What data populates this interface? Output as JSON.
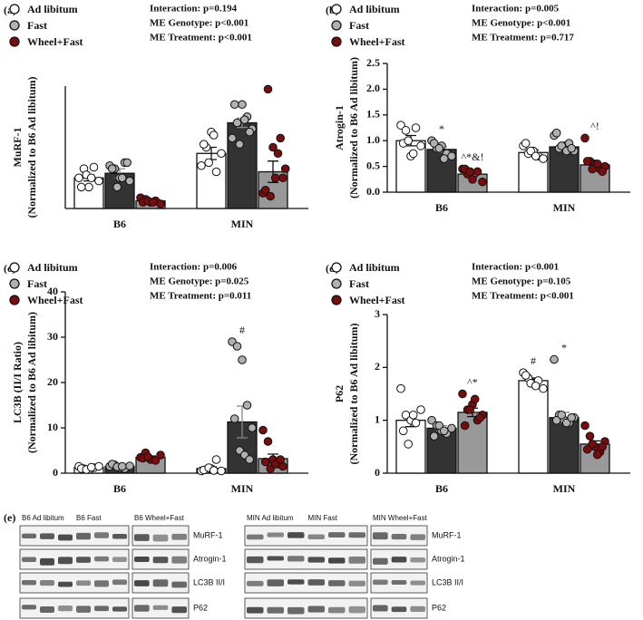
{
  "chart_data": [
    {
      "type": "bar",
      "title": "(a)",
      "ylabel": [
        "MuRF-1",
        "(Normalized to B6 Ad libitum)"
      ],
      "stats": [
        "Interaction: p=0.194",
        "ME Genotype: p<0.001",
        "ME Treatment: p<0.001"
      ],
      "categories": [
        "B6",
        "MIN"
      ],
      "ylim": [
        0,
        4
      ],
      "series": [
        {
          "name": "Ad libitum",
          "color": "#ffffff",
          "point_color": "#ffffff",
          "values": [
            1.0,
            1.8
          ],
          "errors": [
            0.1,
            0.2
          ],
          "points": [
            [
              1.0,
              1.3,
              0.7,
              1.35,
              0.9,
              0.7,
              1.1,
              1.0
            ],
            [
              1.4,
              2.0,
              2.5,
              1.2,
              1.8,
              2.1,
              1.5,
              2.4
            ]
          ]
        },
        {
          "name": "Fast",
          "color": "#333333",
          "point_color": "#b0b0b0",
          "values": [
            1.15,
            2.8
          ],
          "errors": [
            0.15,
            0.15
          ],
          "points": [
            [
              1.4,
              1.3,
              1.0,
              1.5,
              0.9,
              1.3,
              0.7,
              1.0,
              1.5
            ],
            [
              2.3,
              2.8,
              3.4,
              3.0,
              2.6,
              3.4,
              2.1,
              2.9,
              2.5
            ]
          ]
        },
        {
          "name": "Wheel+Fast",
          "color": "#999999",
          "point_color": "#7a0c0c",
          "values": [
            0.25,
            1.2
          ],
          "errors": [
            0.03,
            0.35
          ],
          "points": [
            [
              0.35,
              0.3,
              0.2,
              0.25,
              0.15,
              0.2,
              0.25,
              0.2
            ],
            [
              0.5,
              3.9,
              2.0,
              1.8,
              1.0,
              0.6,
              0.4,
              1.0,
              2.3,
              1.3
            ]
          ]
        }
      ]
    },
    {
      "type": "bar",
      "title": "(b)",
      "ylabel": [
        "Atrogin-1",
        "(Normalized to B6 Ad libitum)"
      ],
      "stats": [
        "Interaction: p=0.005",
        "ME Genotype: p<0.001",
        "ME Treatment: p=0.717"
      ],
      "categories": [
        "B6",
        "MIN"
      ],
      "ylim": [
        0,
        2.5
      ],
      "yticks": [
        {
          "value": 0,
          "label": "0.0"
        },
        0.5,
        {
          "value": 1,
          "label": "1.0"
        },
        1.5,
        {
          "value": 2,
          "label": "2.0"
        },
        2.5
      ],
      "series": [
        {
          "name": "Ad libitum",
          "color": "#ffffff",
          "point_color": "#ffffff",
          "values": [
            1.0,
            0.77
          ],
          "errors": [
            0.1,
            0.05
          ],
          "marks": [
            null,
            null
          ],
          "points": [
            [
              1.3,
              1.2,
              0.7,
              1.25,
              0.9,
              0.95,
              1.0,
              0.75
            ],
            [
              0.9,
              0.75,
              0.8,
              0.7,
              0.65,
              0.95,
              0.8,
              0.7
            ]
          ]
        },
        {
          "name": "Fast",
          "color": "#333333",
          "point_color": "#b0b0b0",
          "values": [
            0.83,
            0.88
          ],
          "errors": [
            0.05,
            0.04
          ],
          "marks": [
            "*",
            null
          ],
          "points": [
            [
              1.0,
              0.85,
              0.9,
              0.75,
              0.7,
              0.95,
              0.85,
              0.65
            ],
            [
              1.1,
              0.85,
              0.9,
              0.95,
              0.8,
              1.15,
              0.9,
              0.8,
              0.85
            ]
          ]
        },
        {
          "name": "Wheel+Fast",
          "color": "#999999",
          "point_color": "#7a0c0c",
          "values": [
            0.35,
            0.53
          ],
          "errors": [
            0.05,
            0.06
          ],
          "marks": [
            "^*&!",
            "^!"
          ],
          "points": [
            [
              0.45,
              0.35,
              0.25,
              0.4,
              0.2,
              0.45,
              0.4
            ],
            [
              1.05,
              0.6,
              0.55,
              0.45,
              0.5,
              0.6,
              0.45,
              0.55,
              0.4
            ]
          ]
        }
      ]
    },
    {
      "type": "bar",
      "title": "(c)",
      "ylabel": [
        "LC3B (II/I Ratio)",
        "(Normalized to B6 Ad libitum)"
      ],
      "stats": [
        "Interaction: p=0.006",
        "ME Genotype: p=0.025",
        "ME Treatment: p=0.011"
      ],
      "categories": [
        "B6",
        "MIN"
      ],
      "ylim": [
        0,
        40
      ],
      "yticks": [
        0,
        10,
        20,
        30,
        40
      ],
      "series": [
        {
          "name": "Ad libitum",
          "color": "#ffffff",
          "point_color": "#ffffff",
          "values": [
            1.2,
            1.0
          ],
          "errors": [
            0.2,
            0.4
          ],
          "marks": [
            null,
            null
          ],
          "points": [
            [
              1.5,
              1.0,
              0.8,
              1.2,
              1.5,
              1.0,
              0.8,
              1.3
            ],
            [
              0.5,
              0.8,
              1.0,
              3.0,
              0.5,
              0.7,
              1.2,
              0.6
            ]
          ]
        },
        {
          "name": "Fast",
          "color": "#333333",
          "point_color": "#b0b0b0",
          "values": [
            1.5,
            11.3
          ],
          "errors": [
            0.2,
            3.5
          ],
          "marks": [
            null,
            "#"
          ],
          "points": [
            [
              1.5,
              1.8,
              1.2,
              1.0,
              1.6,
              2.0,
              1.4,
              1.5
            ],
            [
              29,
              28,
              25,
              15,
              10,
              12,
              5,
              4,
              3
            ]
          ]
        },
        {
          "name": "Wheel+Fast",
          "color": "#999999",
          "point_color": "#7a0c0c",
          "values": [
            3.5,
            3.2
          ],
          "errors": [
            0.3,
            1.0
          ],
          "marks": [
            null,
            null
          ],
          "points": [
            [
              3.5,
              4.5,
              3.0,
              2.8,
              4.0,
              3.3,
              3.6
            ],
            [
              9.5,
              7,
              3,
              2,
              1.5,
              2.5,
              1,
              2,
              3
            ]
          ]
        }
      ]
    },
    {
      "type": "bar",
      "title": "(d)",
      "ylabel": [
        "P62",
        "(Normalized to B6 Ad libitum)"
      ],
      "stats": [
        "Interaction: p<0.001",
        "ME Genotype: p=0.105",
        "ME Treatment: p<0.001"
      ],
      "categories": [
        "B6",
        "MIN"
      ],
      "ylim": [
        0,
        3
      ],
      "yticks": [
        0,
        1,
        2,
        3
      ],
      "series": [
        {
          "name": "Ad libitum",
          "color": "#ffffff",
          "point_color": "#ffffff",
          "values": [
            1.0,
            1.75
          ],
          "errors": [
            0.12,
            0.05
          ],
          "marks": [
            null,
            "#"
          ],
          "points": [
            [
              1.6,
              1.1,
              1.0,
              0.95,
              1.2,
              0.8,
              0.55,
              1.1
            ],
            [
              1.9,
              1.8,
              1.7,
              1.75,
              1.6,
              1.85,
              1.7,
              1.65
            ]
          ]
        },
        {
          "name": "Fast",
          "color": "#333333",
          "point_color": "#b0b0b0",
          "values": [
            0.85,
            1.05
          ],
          "errors": [
            0.05,
            0.1
          ],
          "marks": [
            null,
            "*"
          ],
          "points": [
            [
              1.0,
              0.9,
              0.8,
              0.75,
              0.85,
              0.7,
              0.9,
              0.8
            ],
            [
              2.15,
              1.1,
              1.0,
              0.95,
              1.05,
              1.0,
              1.1,
              0.95,
              1.05
            ]
          ]
        },
        {
          "name": "Wheel+Fast",
          "color": "#999999",
          "point_color": "#7a0c0c",
          "values": [
            1.15,
            0.55
          ],
          "errors": [
            0.08,
            0.06
          ],
          "marks": [
            "^*",
            null
          ],
          "points": [
            [
              1.5,
              1.2,
              1.3,
              1.0,
              1.1,
              0.9,
              1.2,
              1.4,
              1.05
            ],
            [
              0.9,
              0.7,
              0.5,
              0.4,
              0.6,
              0.45,
              0.55,
              0.35,
              0.5
            ]
          ]
        }
      ]
    }
  ],
  "blot": {
    "title": "(e)",
    "headers": [
      "B6 Ad libitum",
      "B6 Fast",
      "B6 Wheel+Fast",
      "MIN Ad libitum",
      "MIN Fast",
      "MIN Wheel+Fast"
    ],
    "rows": [
      "MuRF-1",
      "Atrogin-1",
      "LC3B II/I",
      "P62"
    ]
  }
}
